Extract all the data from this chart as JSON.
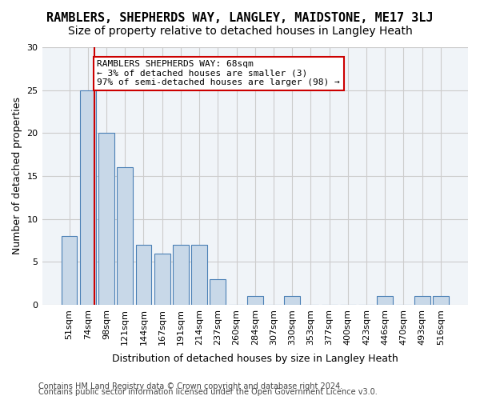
{
  "title": "RAMBLERS, SHEPHERDS WAY, LANGLEY, MAIDSTONE, ME17 3LJ",
  "subtitle": "Size of property relative to detached houses in Langley Heath",
  "xlabel": "Distribution of detached houses by size in Langley Heath",
  "ylabel": "Number of detached properties",
  "categories": [
    "51sqm",
    "74sqm",
    "98sqm",
    "121sqm",
    "144sqm",
    "167sqm",
    "191sqm",
    "214sqm",
    "237sqm",
    "260sqm",
    "284sqm",
    "307sqm",
    "330sqm",
    "353sqm",
    "377sqm",
    "400sqm",
    "423sqm",
    "446sqm",
    "470sqm",
    "493sqm",
    "516sqm"
  ],
  "values": [
    8,
    25,
    20,
    16,
    7,
    6,
    7,
    7,
    3,
    0,
    1,
    0,
    1,
    0,
    0,
    0,
    0,
    1,
    0,
    1,
    1
  ],
  "bar_color": "#c8d8e8",
  "bar_edge_color": "#4a7fb5",
  "red_line_x": 1.35,
  "annotation_lines": [
    "RAMBLERS SHEPHERDS WAY: 68sqm",
    "← 3% of detached houses are smaller (3)",
    "97% of semi-detached houses are larger (98) →"
  ],
  "annotation_box_color": "#ffffff",
  "annotation_box_edge_color": "#cc0000",
  "ylim": [
    0,
    30
  ],
  "yticks": [
    0,
    5,
    10,
    15,
    20,
    25,
    30
  ],
  "grid_color": "#cccccc",
  "bg_color": "#f0f4f8",
  "footer1": "Contains HM Land Registry data © Crown copyright and database right 2024.",
  "footer2": "Contains public sector information licensed under the Open Government Licence v3.0.",
  "title_fontsize": 11,
  "subtitle_fontsize": 10,
  "xlabel_fontsize": 9,
  "ylabel_fontsize": 9,
  "tick_fontsize": 8,
  "annotation_fontsize": 8,
  "footer_fontsize": 7
}
